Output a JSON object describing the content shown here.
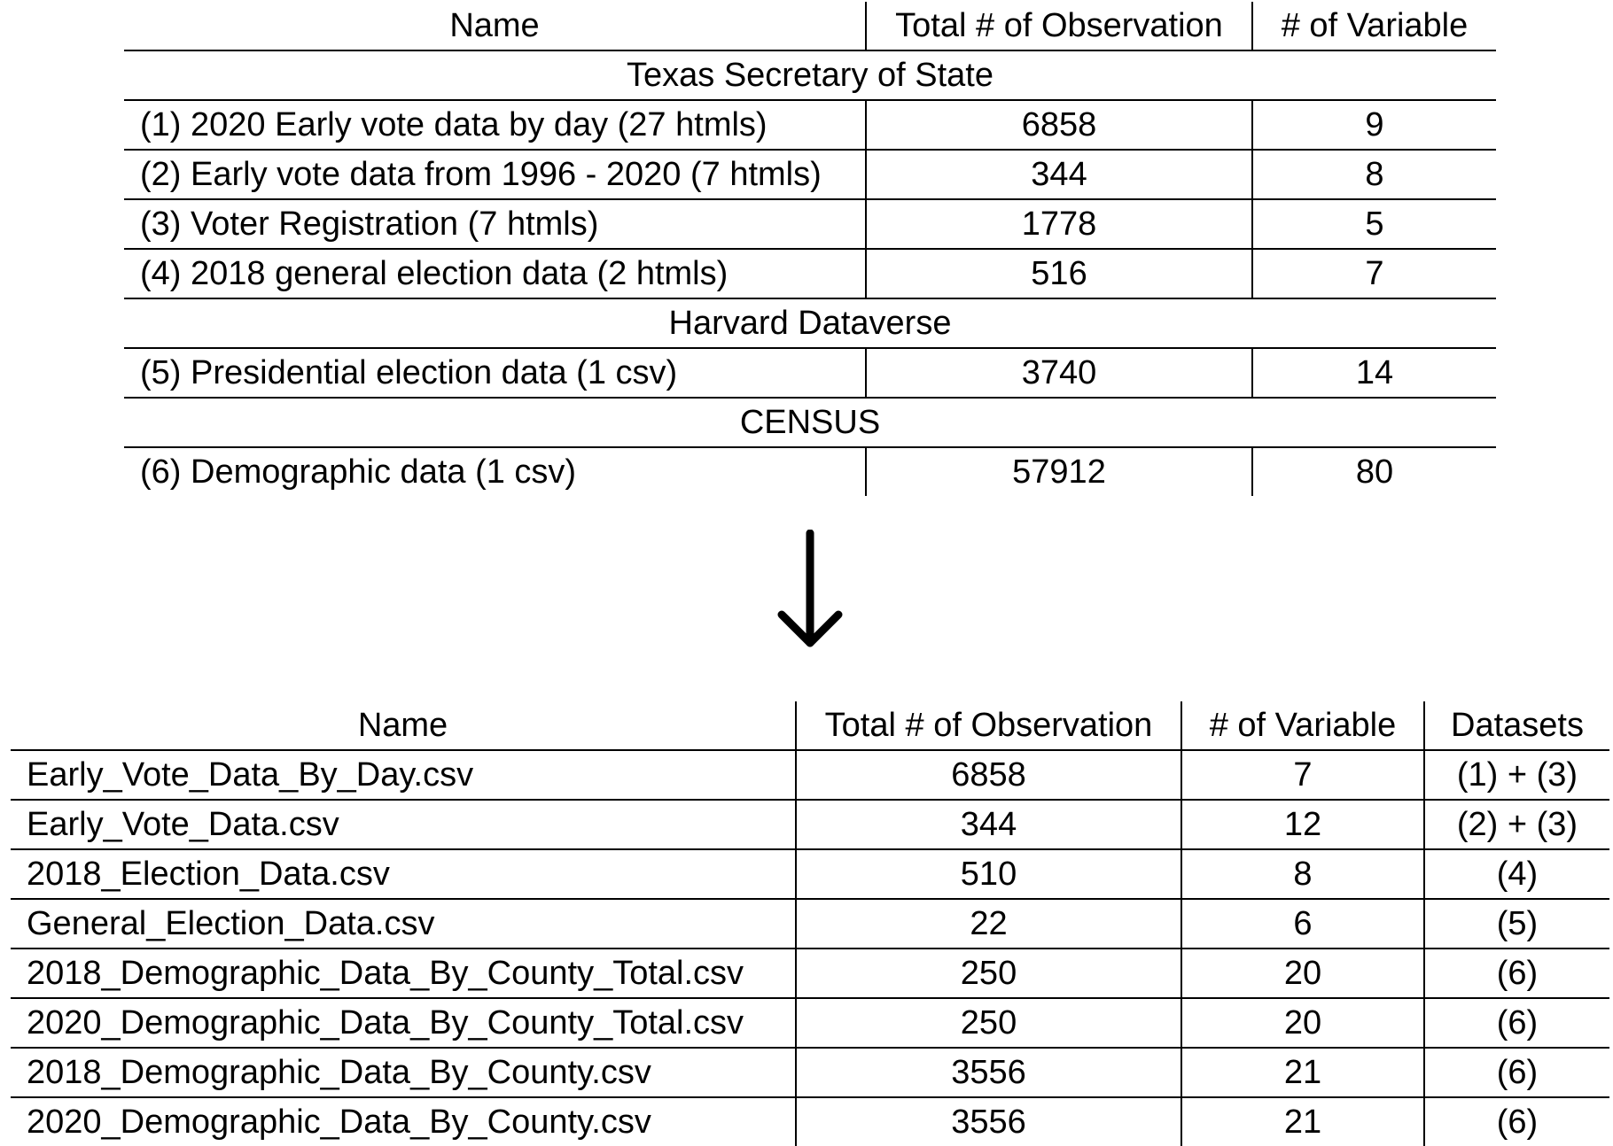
{
  "table1": {
    "headers": [
      "Name",
      "Total # of Observation",
      "# of Variable"
    ],
    "sections": [
      {
        "title": "Texas Secretary of State",
        "rows": [
          {
            "name": "(1) 2020 Early vote data by day (27 htmls)",
            "obs": "6858",
            "vars": "9"
          },
          {
            "name": "(2) Early vote data from 1996 - 2020 (7 htmls)",
            "obs": "344",
            "vars": "8"
          },
          {
            "name": "(3) Voter Registration (7 htmls)",
            "obs": "1778",
            "vars": "5"
          },
          {
            "name": "(4) 2018 general election data (2 htmls)",
            "obs": "516",
            "vars": "7"
          }
        ]
      },
      {
        "title": "Harvard Dataverse",
        "rows": [
          {
            "name": "(5) Presidential election data (1 csv)",
            "obs": "3740",
            "vars": "14"
          }
        ]
      },
      {
        "title": "CENSUS",
        "rows": [
          {
            "name": "(6) Demographic data (1 csv)",
            "obs": "57912",
            "vars": "80"
          }
        ]
      }
    ]
  },
  "arrow": {
    "icon": "down-arrow-icon"
  },
  "table2": {
    "headers": [
      "Name",
      "Total # of Observation",
      "# of Variable",
      "Datasets"
    ],
    "rows": [
      {
        "name": "Early_Vote_Data_By_Day.csv",
        "obs": "6858",
        "vars": "7",
        "datasets": "(1) + (3)"
      },
      {
        "name": "Early_Vote_Data.csv",
        "obs": "344",
        "vars": "12",
        "datasets": "(2) + (3)"
      },
      {
        "name": "2018_Election_Data.csv",
        "obs": "510",
        "vars": "8",
        "datasets": "(4)"
      },
      {
        "name": "General_Election_Data.csv",
        "obs": "22",
        "vars": "6",
        "datasets": "(5)"
      },
      {
        "name": "2018_Demographic_Data_By_County_Total.csv",
        "obs": "250",
        "vars": "20",
        "datasets": "(6)"
      },
      {
        "name": "2020_Demographic_Data_By_County_Total.csv",
        "obs": "250",
        "vars": "20",
        "datasets": "(6)"
      },
      {
        "name": "2018_Demographic_Data_By_County.csv",
        "obs": "3556",
        "vars": "21",
        "datasets": "(6)"
      },
      {
        "name": "2020_Demographic_Data_By_County.csv",
        "obs": "3556",
        "vars": "21",
        "datasets": "(6)"
      }
    ]
  }
}
